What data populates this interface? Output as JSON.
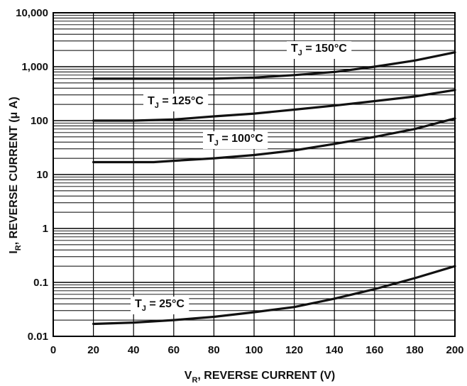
{
  "chart_data": {
    "type": "line",
    "xlabel": {
      "main": "V",
      "sub": "R",
      "rest": ", REVERSE CURRENT (V)"
    },
    "ylabel": {
      "main": "I",
      "sub": "R",
      "rest": ", REVERSE CURRENT (μ A)"
    },
    "xlim": [
      0,
      200
    ],
    "ylim": [
      0.01,
      10000
    ],
    "yscale": "log",
    "grid": true,
    "x_ticks": [
      "0",
      "20",
      "40",
      "60",
      "80",
      "100",
      "120",
      "140",
      "160",
      "180",
      "200"
    ],
    "y_ticks": [
      {
        "value": 0.01,
        "label": "0.01"
      },
      {
        "value": 0.1,
        "label": "0.1"
      },
      {
        "value": 1,
        "label": "1"
      },
      {
        "value": 10,
        "label": "10"
      },
      {
        "value": 100,
        "label": "100"
      },
      {
        "value": 1000,
        "label": "1,000"
      },
      {
        "value": 10000,
        "label": "10,000"
      }
    ],
    "series": [
      {
        "name": "T_J = 150°C",
        "label_main": "T",
        "label_sub": "J",
        "label_rest": " = 150°C",
        "x": [
          20,
          40,
          60,
          80,
          100,
          120,
          140,
          160,
          180,
          200
        ],
        "y": [
          600,
          600,
          600,
          600,
          630,
          700,
          800,
          1000,
          1300,
          1850
        ]
      },
      {
        "name": "T_J = 125°C",
        "label_main": "T",
        "label_sub": "J",
        "label_rest": " = 125°C",
        "x": [
          20,
          40,
          60,
          80,
          100,
          120,
          140,
          160,
          180,
          200
        ],
        "y": [
          100,
          100,
          105,
          120,
          135,
          160,
          190,
          230,
          280,
          370
        ]
      },
      {
        "name": "T_J = 100°C",
        "label_main": "T",
        "label_sub": "J",
        "label_rest": " = 100°C",
        "x": [
          20,
          40,
          50,
          60,
          80,
          100,
          120,
          140,
          160,
          180,
          200
        ],
        "y": [
          17,
          17,
          17,
          18,
          20,
          23,
          28,
          37,
          50,
          70,
          110
        ]
      },
      {
        "name": "T_J = 25°C",
        "label_main": "T",
        "label_sub": "J",
        "label_rest": " = 25°C",
        "x": [
          20,
          40,
          60,
          80,
          100,
          120,
          140,
          160,
          180,
          200
        ],
        "y": [
          0.017,
          0.018,
          0.02,
          0.023,
          0.028,
          0.035,
          0.05,
          0.075,
          0.12,
          0.2
        ]
      }
    ]
  }
}
